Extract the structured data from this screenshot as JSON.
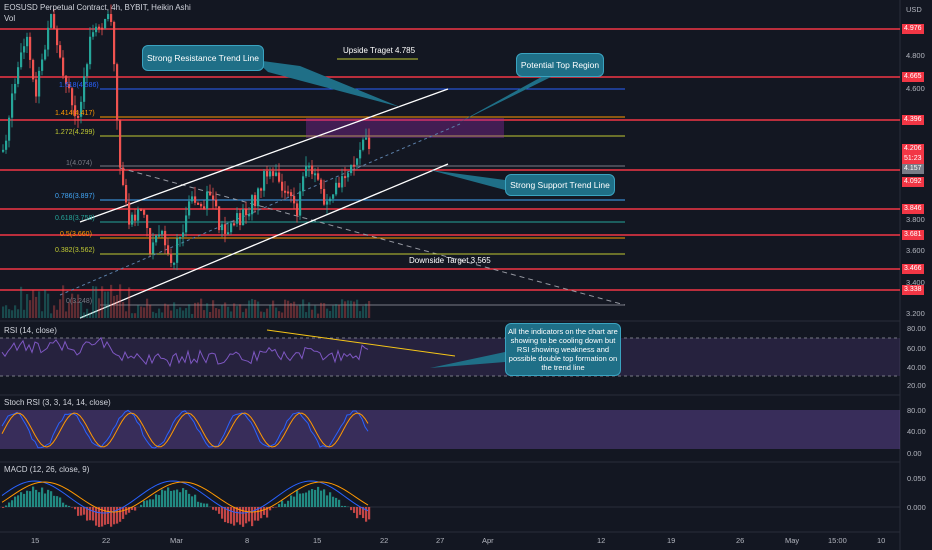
{
  "header": {
    "symbol_line": "EOSUSD Perpetual Contract, 4h, BYBIT, Heikin Ashi",
    "volume_label": "Vol",
    "currency": "USD"
  },
  "price_axis": {
    "ticks": [
      "4.976",
      "4.800",
      "4.665",
      "4.600",
      "4.396",
      "4.206",
      "51:23",
      "4.157",
      "4.092",
      "3.846",
      "3.800",
      "3.681",
      "3.600",
      "3.466",
      "3.400",
      "3.338",
      "3.200"
    ],
    "red_levels": [
      "4.976",
      "4.665",
      "4.396",
      "4.092",
      "3.846",
      "3.681",
      "3.466",
      "3.338"
    ]
  },
  "fib_levels": [
    {
      "label": "1.618(4.586)",
      "color": "#2962ff"
    },
    {
      "label": "1.414(4.417)",
      "color": "#ff9800"
    },
    {
      "label": "1.272(4.299)",
      "color": "#c0ca33"
    },
    {
      "label": "1(4.074)",
      "color": "#787b86"
    },
    {
      "label": "0.786(3.897)",
      "color": "#42a5f5"
    },
    {
      "label": "0.618(3.758)",
      "color": "#26a69a"
    },
    {
      "label": "0.5(3.660)",
      "color": "#ff9800"
    },
    {
      "label": "0.382(3.562)",
      "color": "#c0ca33"
    },
    {
      "label": "0(3.248)",
      "color": "#787b86"
    }
  ],
  "annotations": {
    "resistance": "Strong Resistance Trend Line",
    "potential_top": "Potential Top Region",
    "support": "Strong Support Trend Line",
    "upside": "Upside Traget 4.785",
    "downside": "Downside Target 3,565",
    "rsi_note": "All the indicators on the chart are showing to be cooling down but RSI showing weakness and possible double top formation on the trend line"
  },
  "rsi": {
    "label": "RSI (14, close)",
    "ticks": [
      "80.00",
      "60.00",
      "40.00",
      "20.00"
    ]
  },
  "stoch": {
    "label": "Stoch RSI (3, 3, 14, 14, close)",
    "ticks": [
      "80.00",
      "40.00",
      "0.00"
    ]
  },
  "macd": {
    "label": "MACD (12, 26, close, 9)",
    "ticks": [
      "0.050",
      "0.000"
    ]
  },
  "time_axis": [
    "15",
    "22",
    "Mar",
    "8",
    "15",
    "22",
    "27",
    "Apr",
    "12",
    "19",
    "26",
    "May",
    "15:00",
    "10"
  ],
  "colors": {
    "up": "#26a69a",
    "down": "#ef5350",
    "red_line": "#f23645",
    "panel": "#131722",
    "callout": "#1f6f87"
  }
}
